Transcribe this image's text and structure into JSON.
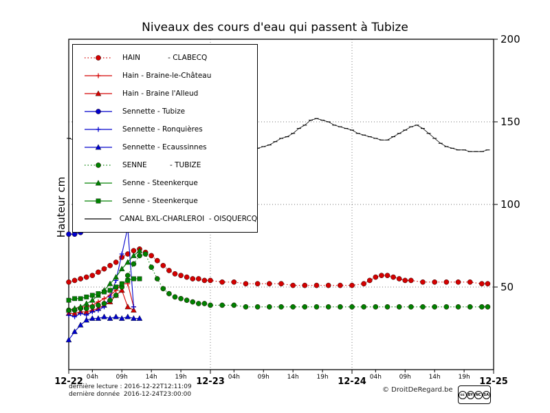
{
  "chart_data": {
    "type": "line",
    "title": "Niveaux des cours d'eau qui passent à Tubize",
    "ylabel": "Hauteur cm",
    "x_axis": {
      "range_hours": [
        0,
        72
      ],
      "major_ticks": [
        {
          "hour": 0,
          "label": "12-22"
        },
        {
          "hour": 24,
          "label": "12-23"
        },
        {
          "hour": 48,
          "label": "12-24"
        },
        {
          "hour": 72,
          "label": "12-25"
        }
      ],
      "minor_ticks": [
        {
          "hour": 4,
          "label": "04h"
        },
        {
          "hour": 9,
          "label": "09h"
        },
        {
          "hour": 14,
          "label": "14h"
        },
        {
          "hour": 19,
          "label": "19h"
        },
        {
          "hour": 28,
          "label": "04h"
        },
        {
          "hour": 33,
          "label": "09h"
        },
        {
          "hour": 38,
          "label": "14h"
        },
        {
          "hour": 43,
          "label": "19h"
        },
        {
          "hour": 52,
          "label": "04h"
        },
        {
          "hour": 57,
          "label": "09h"
        },
        {
          "hour": 62,
          "label": "14h"
        },
        {
          "hour": 67,
          "label": "19h"
        }
      ]
    },
    "y_axis": {
      "range": [
        0,
        200
      ],
      "ticks": [
        {
          "value": 50,
          "label": "50"
        },
        {
          "value": 100,
          "label": "100"
        },
        {
          "value": 150,
          "label": "150"
        },
        {
          "value": 200,
          "label": "200"
        }
      ]
    },
    "grid": {
      "h_lines": [
        50,
        100,
        150
      ],
      "v_lines_hours": [
        24,
        48
      ]
    },
    "series": [
      {
        "id": "hain-clabecq",
        "name": "HAIN - CLABECQ",
        "legend_label": "HAIN            - CLABECQ",
        "color": "#d40000",
        "marker": "circle",
        "line": "dotted",
        "points": [
          [
            0,
            53
          ],
          [
            1,
            54
          ],
          [
            2,
            55
          ],
          [
            3,
            56
          ],
          [
            4,
            57
          ],
          [
            5,
            59
          ],
          [
            6,
            61
          ],
          [
            7,
            63
          ],
          [
            8,
            65
          ],
          [
            9,
            68
          ],
          [
            10,
            70
          ],
          [
            11,
            72
          ],
          [
            12,
            73
          ],
          [
            13,
            71
          ],
          [
            14,
            69
          ],
          [
            15,
            66
          ],
          [
            16,
            63
          ],
          [
            17,
            60
          ],
          [
            18,
            58
          ],
          [
            19,
            57
          ],
          [
            20,
            56
          ],
          [
            21,
            55
          ],
          [
            22,
            55
          ],
          [
            23,
            54
          ],
          [
            24,
            54
          ],
          [
            26,
            53
          ],
          [
            28,
            53
          ],
          [
            30,
            52
          ],
          [
            32,
            52
          ],
          [
            34,
            52
          ],
          [
            36,
            52
          ],
          [
            38,
            51
          ],
          [
            40,
            51
          ],
          [
            42,
            51
          ],
          [
            44,
            51
          ],
          [
            46,
            51
          ],
          [
            48,
            51
          ],
          [
            50,
            52
          ],
          [
            51,
            54
          ],
          [
            52,
            56
          ],
          [
            53,
            57
          ],
          [
            54,
            57
          ],
          [
            55,
            56
          ],
          [
            56,
            55
          ],
          [
            57,
            54
          ],
          [
            58,
            54
          ],
          [
            60,
            53
          ],
          [
            62,
            53
          ],
          [
            64,
            53
          ],
          [
            66,
            53
          ],
          [
            68,
            53
          ],
          [
            70,
            52
          ],
          [
            71,
            52
          ]
        ]
      },
      {
        "id": "hain-braine-le-chateau",
        "name": "Hain - Braine-le-Château",
        "legend_label": "Hain - Braine-le-Château",
        "color": "#d40000",
        "marker": "plus",
        "line": "solid",
        "points": [
          [
            0,
            36
          ],
          [
            1,
            37
          ],
          [
            2,
            38
          ],
          [
            3,
            38
          ],
          [
            4,
            39
          ],
          [
            5,
            41
          ],
          [
            6,
            43
          ],
          [
            7,
            45
          ],
          [
            8,
            48
          ],
          [
            9,
            52
          ],
          [
            10,
            52
          ],
          [
            11,
            38
          ]
        ]
      },
      {
        "id": "hain-braine-alleud",
        "name": "Hain - Braine l'Alleud",
        "legend_label": "Hain - Braine l'Alleud",
        "color": "#d40000",
        "marker": "triangle",
        "line": "solid",
        "points": [
          [
            0,
            34
          ],
          [
            1,
            34
          ],
          [
            2,
            35
          ],
          [
            3,
            35
          ],
          [
            4,
            36
          ],
          [
            5,
            37
          ],
          [
            6,
            39
          ],
          [
            7,
            41
          ],
          [
            8,
            45
          ],
          [
            9,
            48
          ],
          [
            10,
            38
          ],
          [
            11,
            36
          ]
        ]
      },
      {
        "id": "sennette-tubize",
        "name": "Sennette - Tubize",
        "legend_label": "Sennette - Tubize",
        "color": "#0000cc",
        "marker": "circle",
        "line": "solid",
        "points": [
          [
            0,
            82
          ],
          [
            1,
            82
          ],
          [
            2,
            83
          ]
        ]
      },
      {
        "id": "sennette-ronquieres",
        "name": "Sennette - Ronquières",
        "legend_label": "Sennette - Ronquières",
        "color": "#0000cc",
        "marker": "plus",
        "line": "solid",
        "points": [
          [
            0,
            33
          ],
          [
            1,
            32
          ],
          [
            2,
            34
          ],
          [
            3,
            33
          ],
          [
            4,
            35
          ],
          [
            5,
            36
          ],
          [
            6,
            38
          ],
          [
            7,
            44
          ],
          [
            8,
            54
          ],
          [
            9,
            70
          ],
          [
            10,
            86
          ],
          [
            11,
            38
          ]
        ]
      },
      {
        "id": "sennette-ecaussinnes",
        "name": "Sennette - Ecaussinnes",
        "legend_label": "Sennette - Ecaussinnes",
        "color": "#0000cc",
        "marker": "triangle",
        "line": "solid",
        "points": [
          [
            0,
            18
          ],
          [
            1,
            23
          ],
          [
            2,
            27
          ],
          [
            3,
            30
          ],
          [
            4,
            31
          ],
          [
            5,
            31
          ],
          [
            6,
            32
          ],
          [
            7,
            31
          ],
          [
            8,
            32
          ],
          [
            9,
            31
          ],
          [
            10,
            32
          ],
          [
            11,
            31
          ],
          [
            12,
            31
          ]
        ]
      },
      {
        "id": "senne-tubize",
        "name": "SENNE - TUBIZE",
        "legend_label": "SENNE          - TUBIZE",
        "color": "#008000",
        "marker": "circle",
        "line": "dotted",
        "points": [
          [
            0,
            36
          ],
          [
            1,
            36
          ],
          [
            2,
            37
          ],
          [
            3,
            37
          ],
          [
            4,
            38
          ],
          [
            5,
            39
          ],
          [
            6,
            40
          ],
          [
            7,
            42
          ],
          [
            8,
            45
          ],
          [
            9,
            50
          ],
          [
            10,
            57
          ],
          [
            11,
            64
          ],
          [
            12,
            69
          ],
          [
            13,
            70
          ],
          [
            14,
            62
          ],
          [
            15,
            55
          ],
          [
            16,
            49
          ],
          [
            17,
            46
          ],
          [
            18,
            44
          ],
          [
            19,
            43
          ],
          [
            20,
            42
          ],
          [
            21,
            41
          ],
          [
            22,
            40
          ],
          [
            23,
            40
          ],
          [
            24,
            39
          ],
          [
            26,
            39
          ],
          [
            28,
            39
          ],
          [
            30,
            38
          ],
          [
            32,
            38
          ],
          [
            34,
            38
          ],
          [
            36,
            38
          ],
          [
            38,
            38
          ],
          [
            40,
            38
          ],
          [
            42,
            38
          ],
          [
            44,
            38
          ],
          [
            46,
            38
          ],
          [
            48,
            38
          ],
          [
            50,
            38
          ],
          [
            52,
            38
          ],
          [
            54,
            38
          ],
          [
            56,
            38
          ],
          [
            58,
            38
          ],
          [
            60,
            38
          ],
          [
            62,
            38
          ],
          [
            64,
            38
          ],
          [
            66,
            38
          ],
          [
            68,
            38
          ],
          [
            70,
            38
          ],
          [
            71,
            38
          ]
        ]
      },
      {
        "id": "senne-steenkerque-tri",
        "name": "Senne - Steenkerque",
        "legend_label": "Senne - Steenkerque",
        "color": "#008000",
        "marker": "triangle",
        "line": "solid",
        "points": [
          [
            0,
            36
          ],
          [
            1,
            37
          ],
          [
            2,
            38
          ],
          [
            3,
            40
          ],
          [
            4,
            42
          ],
          [
            5,
            45
          ],
          [
            6,
            48
          ],
          [
            7,
            52
          ],
          [
            8,
            56
          ],
          [
            9,
            61
          ],
          [
            10,
            65
          ],
          [
            11,
            69
          ],
          [
            12,
            72
          ]
        ]
      },
      {
        "id": "senne-steenkerque-sq",
        "name": "Senne - Steenkerque",
        "legend_label": "Senne - Steenkerque",
        "color": "#008000",
        "marker": "square",
        "line": "solid",
        "points": [
          [
            0,
            42
          ],
          [
            1,
            43
          ],
          [
            2,
            43
          ],
          [
            3,
            44
          ],
          [
            4,
            45
          ],
          [
            5,
            46
          ],
          [
            6,
            47
          ],
          [
            7,
            48
          ],
          [
            8,
            50
          ],
          [
            9,
            52
          ],
          [
            10,
            54
          ],
          [
            11,
            55
          ],
          [
            12,
            55
          ]
        ]
      },
      {
        "id": "canal",
        "name": "CANAL BXL-CHARLEROI - OISQUERCQ",
        "legend_label": "CANAL BXL-CHARLEROI  - OISQUERCQ",
        "color": "#000000",
        "marker": "hline",
        "line": "solid",
        "points": [
          [
            0,
            140
          ],
          [
            1,
            139
          ],
          [
            2,
            139
          ],
          [
            3,
            138
          ],
          [
            4,
            138
          ],
          [
            5,
            138
          ],
          [
            6,
            137
          ],
          [
            7,
            137
          ],
          [
            8,
            137
          ],
          [
            9,
            136
          ],
          [
            10,
            136
          ],
          [
            11,
            136
          ],
          [
            12,
            136
          ],
          [
            13,
            135
          ],
          [
            14,
            135
          ],
          [
            15,
            135
          ],
          [
            16,
            134
          ],
          [
            17,
            134
          ],
          [
            18,
            134
          ],
          [
            19,
            134
          ],
          [
            20,
            133
          ],
          [
            21,
            133
          ],
          [
            22,
            133
          ],
          [
            23,
            133
          ],
          [
            24,
            133
          ],
          [
            25,
            133
          ],
          [
            26,
            132
          ],
          [
            27,
            132
          ],
          [
            28,
            132
          ],
          [
            29,
            133
          ],
          [
            30,
            133
          ],
          [
            31,
            133
          ],
          [
            32,
            134
          ],
          [
            33,
            135
          ],
          [
            34,
            136
          ],
          [
            35,
            138
          ],
          [
            36,
            140
          ],
          [
            37,
            141
          ],
          [
            38,
            143
          ],
          [
            39,
            146
          ],
          [
            40,
            148
          ],
          [
            41,
            151
          ],
          [
            42,
            152
          ],
          [
            43,
            151
          ],
          [
            44,
            150
          ],
          [
            45,
            148
          ],
          [
            46,
            147
          ],
          [
            47,
            146
          ],
          [
            48,
            145
          ],
          [
            49,
            143
          ],
          [
            50,
            142
          ],
          [
            51,
            141
          ],
          [
            52,
            140
          ],
          [
            53,
            139
          ],
          [
            54,
            139
          ],
          [
            55,
            141
          ],
          [
            56,
            143
          ],
          [
            57,
            145
          ],
          [
            58,
            147
          ],
          [
            59,
            148
          ],
          [
            60,
            146
          ],
          [
            61,
            143
          ],
          [
            62,
            140
          ],
          [
            63,
            137
          ],
          [
            64,
            135
          ],
          [
            65,
            134
          ],
          [
            66,
            133
          ],
          [
            67,
            133
          ],
          [
            68,
            132
          ],
          [
            69,
            132
          ],
          [
            70,
            132
          ],
          [
            71,
            133
          ]
        ]
      }
    ]
  },
  "footer": {
    "last_reading": "dernière lecture : 2016-12-22T12:11:09",
    "last_data": "dernière donnée  2016-12-24T23:00:00",
    "copyright": "© DroitDeRegard.be",
    "cc_icons": [
      "cc",
      "BY",
      "NC",
      "SA"
    ]
  }
}
